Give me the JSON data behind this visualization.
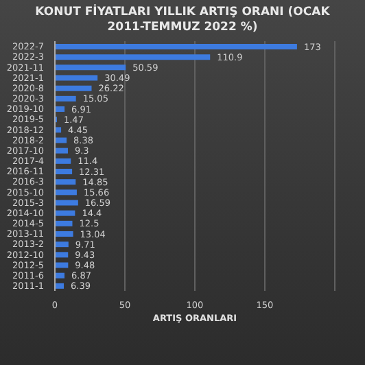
{
  "chart_data": {
    "type": "bar",
    "orientation": "horizontal",
    "title": "KONUT FİYATLARI YILLIK ARTIŞ ORANI (OCAK 2011-TEMMUZ 2022 %)",
    "xlabel": "ARTIŞ ORANLARI",
    "categories": [
      "2022-7",
      "2022-3",
      "2021-11",
      "2021-1",
      "2020-8",
      "2020-3",
      "2019-10",
      "2019-5",
      "2018-12",
      "2018-2",
      "2017-10",
      "2017-4",
      "2016-11",
      "2016-3",
      "2015-10",
      "2015-3",
      "2014-10",
      "2014-5",
      "2013-11",
      "2013-2",
      "2012-10",
      "2012-5",
      "2011-6",
      "2011-1"
    ],
    "values": [
      173,
      110.9,
      50.59,
      30.49,
      26.22,
      15.05,
      6.91,
      1.47,
      4.45,
      8.38,
      9.3,
      11.4,
      12.31,
      14.85,
      15.66,
      16.59,
      14.4,
      12.5,
      13.04,
      9.71,
      9.43,
      9.48,
      6.87,
      6.39
    ],
    "color": "#3d7be0",
    "data_labels": true,
    "xlim": [
      0,
      200
    ],
    "xticks": [
      0,
      50,
      100,
      150
    ],
    "grid": "x"
  }
}
